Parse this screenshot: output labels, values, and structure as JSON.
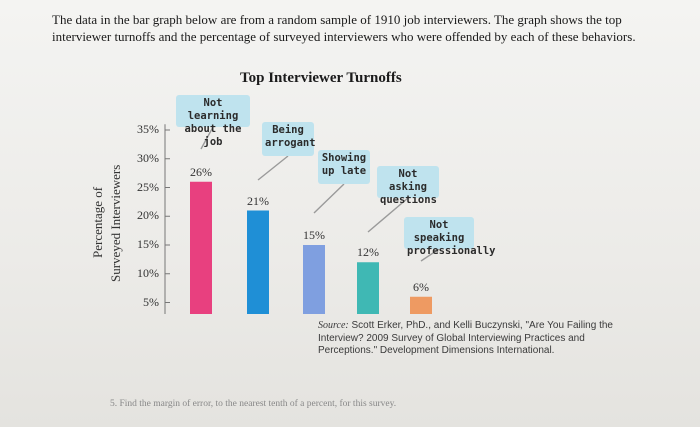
{
  "intro_text": "The data in the bar graph below are from a random sample of 1910 job interviewers. The graph shows the top interviewer turnoffs and the percentage of surveyed interviewers who were offended by each of these behaviors.",
  "chart_data": {
    "type": "bar",
    "title": "Top Interviewer Turnoffs",
    "ylabel_line1": "Percentage of",
    "ylabel_line2": "Surveyed Interviewers",
    "yticks": [
      "35%",
      "30%",
      "25%",
      "20%",
      "15%",
      "10%",
      "5%"
    ],
    "ytick_values": [
      35,
      30,
      25,
      20,
      15,
      10,
      5
    ],
    "ylim": [
      3,
      36
    ],
    "categories": [
      "Not learning about the job",
      "Being arrogant",
      "Showing up late",
      "Not asking questions",
      "Not speaking professionally"
    ],
    "category_lines": [
      [
        "Not learning",
        "about the job"
      ],
      [
        "Being",
        "arrogant"
      ],
      [
        "Showing",
        "up late"
      ],
      [
        "Not asking",
        "questions"
      ],
      [
        "Not speaking",
        "professionally"
      ]
    ],
    "values": [
      26,
      21,
      15,
      12,
      6
    ],
    "value_labels": [
      "26%",
      "21%",
      "15%",
      "12%",
      "6%"
    ],
    "colors": [
      "#e8407f",
      "#1f8fd6",
      "#7f9fe0",
      "#3fb8b4",
      "#ee9a62"
    ],
    "grid": false
  },
  "source": {
    "key": "Source:",
    "text": "Scott Erker, PhD., and Kelli Buczynski, \"Are You Failing the Interview? 2009 Survey of Global Interviewing Practices and Perceptions.\" Development Dimensions International."
  },
  "question": "5.  Find the margin of error, to the nearest tenth of a percent, for this survey."
}
